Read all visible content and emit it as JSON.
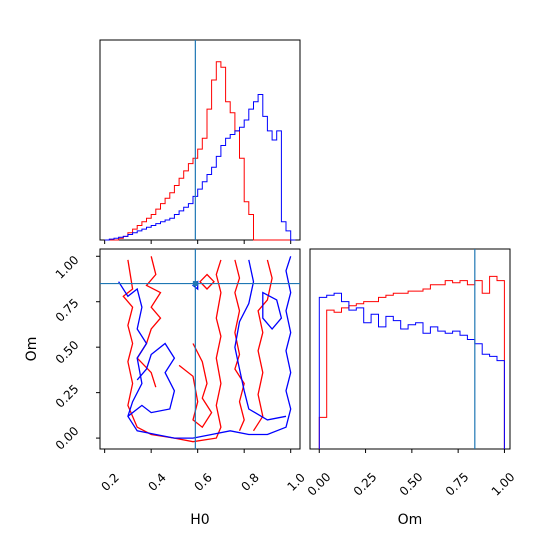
{
  "colors": {
    "run_a": "#ff0000",
    "run_b": "#0000ff",
    "truth": "#1f77b4"
  },
  "chart_data": [
    {
      "panel": "H0-marginal",
      "type": "histogram",
      "xlim": [
        0.18,
        1.04
      ],
      "bin_edges": [
        0.2,
        0.22,
        0.24,
        0.26,
        0.28,
        0.3,
        0.32,
        0.34,
        0.36,
        0.38,
        0.4,
        0.42,
        0.44,
        0.46,
        0.48,
        0.5,
        0.52,
        0.54,
        0.56,
        0.58,
        0.6,
        0.62,
        0.64,
        0.66,
        0.68,
        0.7,
        0.72,
        0.74,
        0.76,
        0.78,
        0.8,
        0.82,
        0.84,
        0.86,
        0.88,
        0.9,
        0.92,
        0.94,
        0.96,
        0.98,
        1.0,
        1.02
      ],
      "series": [
        {
          "values": [
            0,
            0,
            0,
            0.01,
            0.02,
            0.04,
            0.06,
            0.08,
            0.1,
            0.12,
            0.14,
            0.17,
            0.2,
            0.23,
            0.26,
            0.3,
            0.34,
            0.38,
            0.42,
            0.45,
            0.5,
            0.56,
            0.72,
            0.88,
            0.98,
            0.95,
            0.76,
            0.7,
            0.6,
            0.45,
            0.21,
            0.14,
            0.0,
            0,
            0,
            0,
            0,
            0,
            0,
            0,
            0
          ]
        },
        {
          "values": [
            0,
            0.005,
            0.01,
            0.015,
            0.02,
            0.03,
            0.04,
            0.05,
            0.06,
            0.07,
            0.08,
            0.09,
            0.1,
            0.11,
            0.12,
            0.14,
            0.16,
            0.18,
            0.2,
            0.24,
            0.28,
            0.32,
            0.36,
            0.4,
            0.46,
            0.52,
            0.56,
            0.58,
            0.6,
            0.62,
            0.66,
            0.72,
            0.76,
            0.8,
            0.68,
            0.6,
            0.55,
            0.6,
            0.1,
            0.05,
            0
          ]
        }
      ],
      "truth_x": 0.59
    },
    {
      "panel": "H0-Om-2D",
      "type": "contour",
      "x_tick_labels": [
        "0.2",
        "0.4",
        "0.6",
        "0.8",
        "1.0"
      ],
      "y_tick_labels": [
        "0.00",
        "0.25",
        "0.50",
        "0.75",
        "1.00"
      ],
      "xlabel": "H0",
      "ylabel": "Om",
      "xlim": [
        0.18,
        1.04
      ],
      "ylim": [
        -0.06,
        1.04
      ],
      "truth": {
        "x": 0.59,
        "y": 0.85
      }
    },
    {
      "panel": "Om-marginal",
      "type": "histogram",
      "x_tick_labels": [
        "0.00",
        "0.25",
        "0.50",
        "0.75",
        "1.00"
      ],
      "xlabel": "Om",
      "xlim": [
        -0.05,
        1.03
      ],
      "bin_edges": [
        0.0,
        0.04,
        0.08,
        0.12,
        0.16,
        0.2,
        0.24,
        0.28,
        0.32,
        0.36,
        0.4,
        0.44,
        0.48,
        0.52,
        0.56,
        0.6,
        0.64,
        0.68,
        0.72,
        0.76,
        0.8,
        0.84,
        0.88,
        0.92,
        0.96,
        1.0
      ],
      "series": [
        {
          "values": [
            0.15,
            0.66,
            0.65,
            0.67,
            0.68,
            0.69,
            0.7,
            0.7,
            0.72,
            0.73,
            0.74,
            0.74,
            0.75,
            0.75,
            0.76,
            0.78,
            0.78,
            0.8,
            0.79,
            0.8,
            0.78,
            0.8,
            0.74,
            0.82,
            0.8
          ]
        },
        {
          "values": [
            0.72,
            0.73,
            0.74,
            0.7,
            0.66,
            0.67,
            0.6,
            0.64,
            0.58,
            0.63,
            0.61,
            0.57,
            0.59,
            0.6,
            0.55,
            0.58,
            0.56,
            0.55,
            0.56,
            0.54,
            0.52,
            0.5,
            0.45,
            0.44,
            0.42
          ]
        }
      ],
      "truth_x": 0.84
    }
  ]
}
